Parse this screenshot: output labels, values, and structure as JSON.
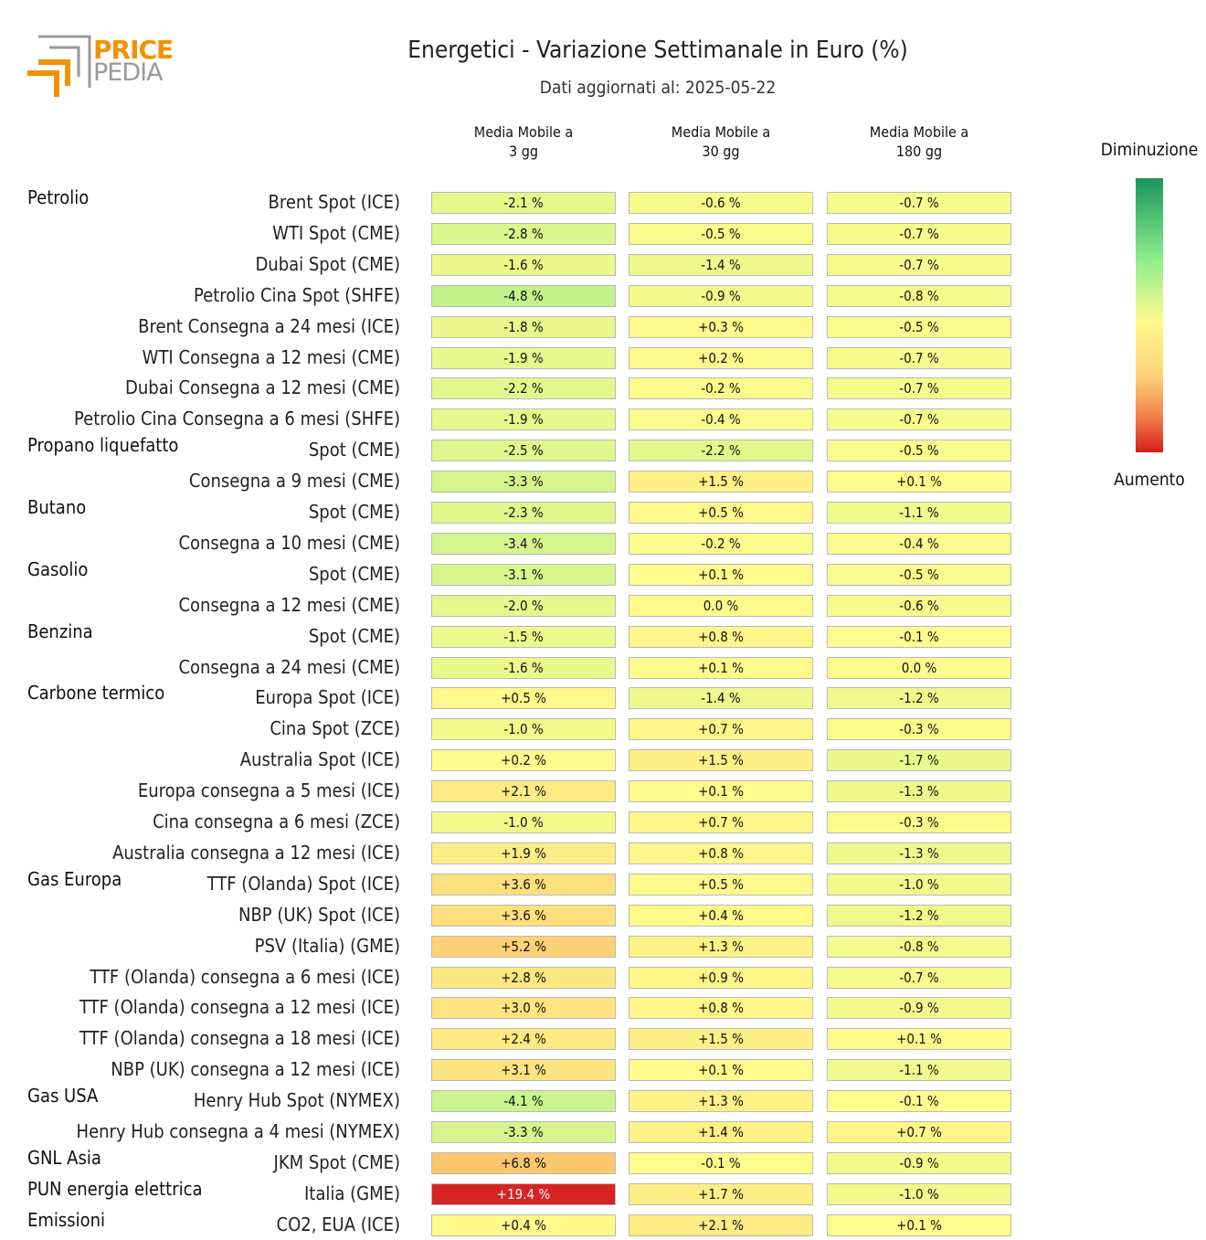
{
  "header": {
    "logo_top": "PRICE",
    "logo_bottom": "PEDIA",
    "title": "Energetici - Variazione Settimanale in Euro (%)",
    "subtitle": "Dati aggiornati al: 2025-05-22"
  },
  "legend": {
    "top_label": "Diminuzione",
    "bottom_label": "Aumento",
    "colors": [
      "#19955d",
      "#8fef8c",
      "#fff98c",
      "#fdd27a",
      "#f07a45",
      "#d61c1c"
    ]
  },
  "chart_data": {
    "type": "heatmap",
    "title": "Energetici - Variazione Settimanale in Euro (%)",
    "subtitle": "Dati aggiornati al: 2025-05-22",
    "columns": [
      "Media Mobile a 3 gg",
      "Media Mobile a 30 gg",
      "Media Mobile a 180 gg"
    ],
    "column_lines": [
      [
        "Media Mobile a",
        "3 gg"
      ],
      [
        "Media Mobile a",
        "30 gg"
      ],
      [
        "Media Mobile a",
        "180 gg"
      ]
    ],
    "unit": "%",
    "rows": [
      {
        "group": "Petrolio",
        "label": "Brent Spot (ICE)",
        "values": [
          -2.1,
          -0.6,
          -0.7
        ]
      },
      {
        "group": "",
        "label": "WTI Spot (CME)",
        "values": [
          -2.8,
          -0.5,
          -0.7
        ]
      },
      {
        "group": "",
        "label": "Dubai Spot (CME)",
        "values": [
          -1.6,
          -1.4,
          -0.7
        ]
      },
      {
        "group": "",
        "label": "Petrolio Cina Spot (SHFE)",
        "values": [
          -4.8,
          -0.9,
          -0.8
        ]
      },
      {
        "group": "",
        "label": "Brent Consegna a 24 mesi (ICE)",
        "values": [
          -1.8,
          0.3,
          -0.5
        ]
      },
      {
        "group": "",
        "label": "WTI Consegna a 12 mesi (CME)",
        "values": [
          -1.9,
          0.2,
          -0.7
        ]
      },
      {
        "group": "",
        "label": "Dubai Consegna a 12 mesi (CME)",
        "values": [
          -2.2,
          -0.2,
          -0.7
        ]
      },
      {
        "group": "",
        "label": "Petrolio Cina Consegna a 6 mesi (SHFE)",
        "values": [
          -1.9,
          -0.4,
          -0.7
        ]
      },
      {
        "group": "Propano liquefatto",
        "label": "Spot (CME)",
        "values": [
          -2.5,
          -2.2,
          -0.5
        ]
      },
      {
        "group": "",
        "label": "Consegna a 9 mesi (CME)",
        "values": [
          -3.3,
          1.5,
          0.1
        ]
      },
      {
        "group": "Butano",
        "label": "Spot (CME)",
        "values": [
          -2.3,
          0.5,
          -1.1
        ]
      },
      {
        "group": "",
        "label": "Consegna a 10 mesi (CME)",
        "values": [
          -3.4,
          -0.2,
          -0.4
        ]
      },
      {
        "group": "Gasolio",
        "label": "Spot (CME)",
        "values": [
          -3.1,
          0.1,
          -0.5
        ]
      },
      {
        "group": "",
        "label": "Consegna a 12 mesi (CME)",
        "values": [
          -2.0,
          0.0,
          -0.6
        ]
      },
      {
        "group": "Benzina",
        "label": "Spot (CME)",
        "values": [
          -1.5,
          0.8,
          -0.1
        ]
      },
      {
        "group": "",
        "label": "Consegna a 24 mesi (CME)",
        "values": [
          -1.6,
          0.1,
          0.0
        ]
      },
      {
        "group": "Carbone termico",
        "label": "Europa Spot (ICE)",
        "values": [
          0.5,
          -1.4,
          -1.2
        ]
      },
      {
        "group": "",
        "label": "Cina Spot (ZCE)",
        "values": [
          -1.0,
          0.7,
          -0.3
        ]
      },
      {
        "group": "",
        "label": "Australia Spot (ICE)",
        "values": [
          0.2,
          1.5,
          -1.7
        ]
      },
      {
        "group": "",
        "label": "Europa consegna a 5 mesi (ICE)",
        "values": [
          2.1,
          0.1,
          -1.3
        ]
      },
      {
        "group": "",
        "label": "Cina consegna a 6 mesi (ZCE)",
        "values": [
          -1.0,
          0.7,
          -0.3
        ]
      },
      {
        "group": "",
        "label": "Australia consegna a 12 mesi (ICE)",
        "values": [
          1.9,
          0.8,
          -1.3
        ]
      },
      {
        "group": "Gas Europa",
        "label": "TTF (Olanda) Spot (ICE)",
        "values": [
          3.6,
          0.5,
          -1.0
        ]
      },
      {
        "group": "",
        "label": "NBP (UK) Spot (ICE)",
        "values": [
          3.6,
          0.4,
          -1.2
        ]
      },
      {
        "group": "",
        "label": "PSV (Italia) (GME)",
        "values": [
          5.2,
          1.3,
          -0.8
        ]
      },
      {
        "group": "",
        "label": "TTF (Olanda) consegna a 6 mesi (ICE)",
        "values": [
          2.8,
          0.9,
          -0.7
        ]
      },
      {
        "group": "",
        "label": "TTF (Olanda) consegna a 12 mesi (ICE)",
        "values": [
          3.0,
          0.8,
          -0.9
        ]
      },
      {
        "group": "",
        "label": "TTF (Olanda) consegna a 18 mesi (ICE)",
        "values": [
          2.4,
          1.5,
          0.1
        ]
      },
      {
        "group": "",
        "label": "NBP (UK) consegna a 12 mesi (ICE)",
        "values": [
          3.1,
          0.1,
          -1.1
        ]
      },
      {
        "group": "Gas USA",
        "label": "Henry Hub Spot (NYMEX)",
        "values": [
          -4.1,
          1.3,
          -0.1
        ]
      },
      {
        "group": "",
        "label": "Henry Hub consegna a 4 mesi (NYMEX)",
        "values": [
          -3.3,
          1.4,
          0.7
        ]
      },
      {
        "group": "GNL Asia",
        "label": "JKM Spot (CME)",
        "values": [
          6.8,
          -0.1,
          -0.9
        ]
      },
      {
        "group": "PUN energia elettrica",
        "label": "Italia (GME)",
        "values": [
          19.4,
          1.7,
          -1.0
        ]
      },
      {
        "group": "Emissioni",
        "label": "CO2, EUA (ICE)",
        "values": [
          0.4,
          2.1,
          0.1
        ]
      }
    ]
  }
}
